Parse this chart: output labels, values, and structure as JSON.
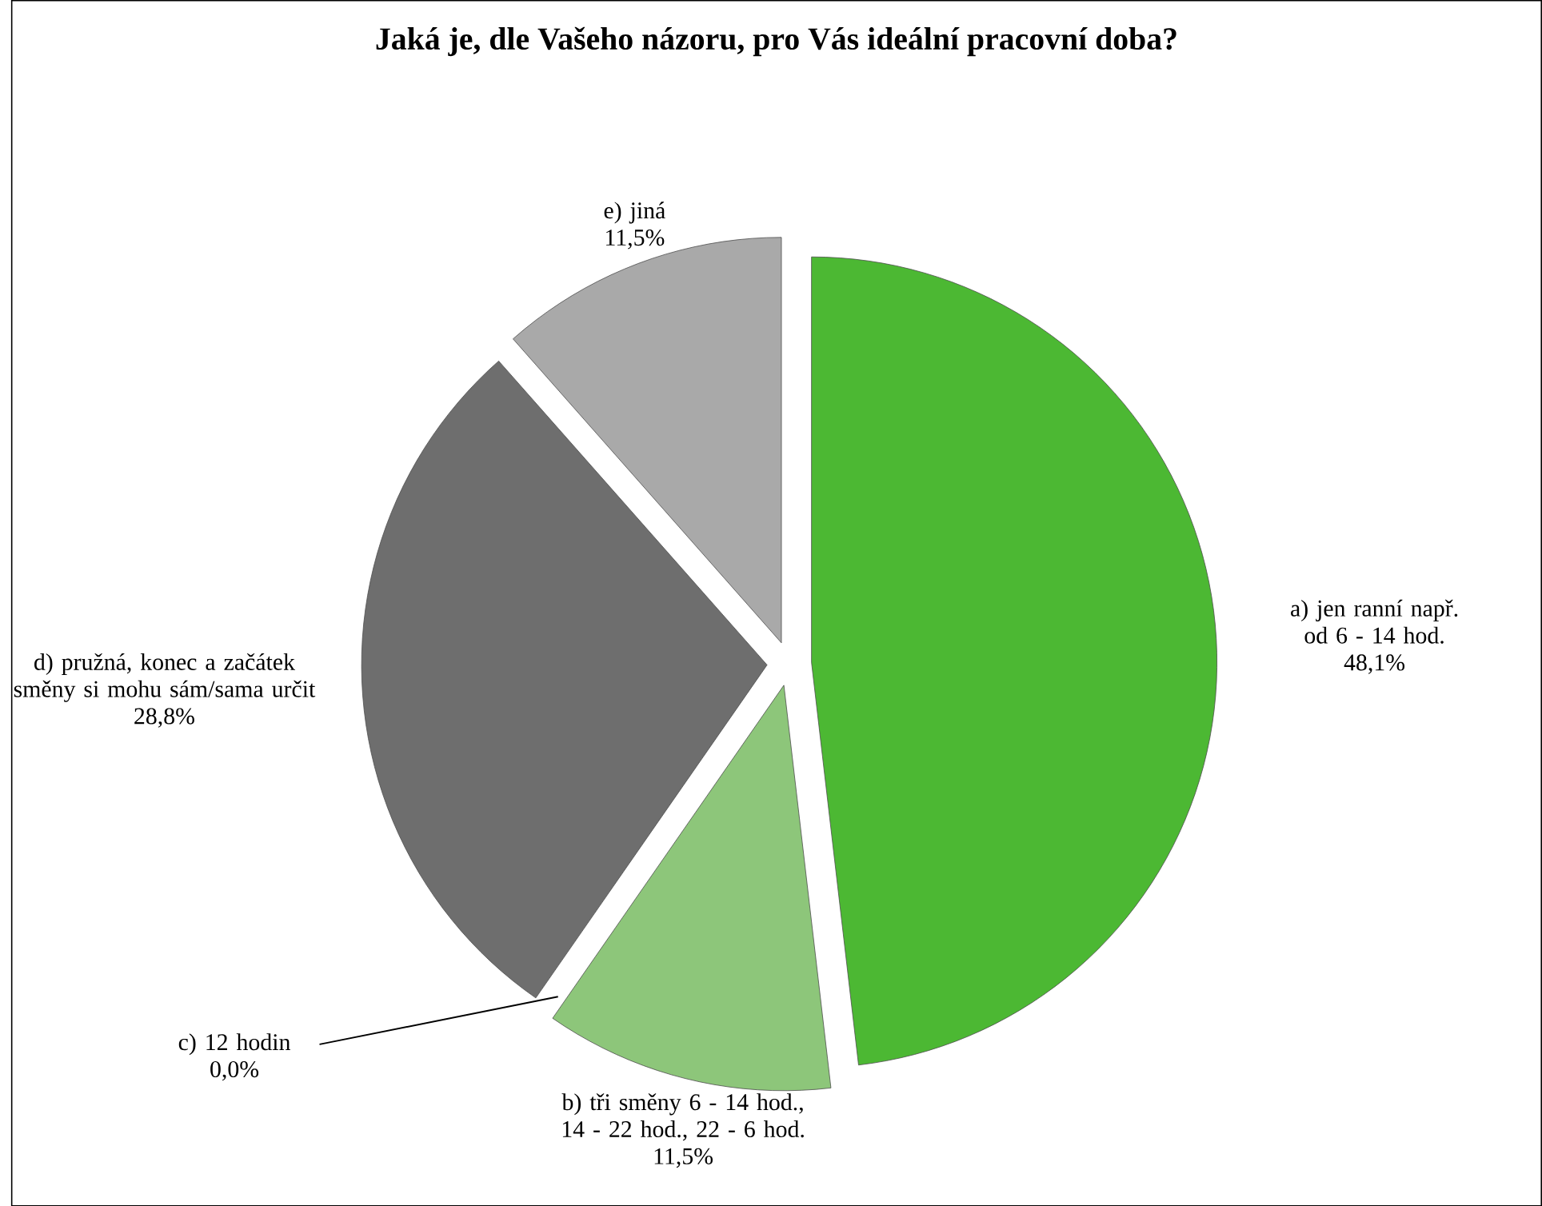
{
  "chart_data": {
    "type": "pie",
    "title": "Jaká je, dle Vašeho názoru, pro Vás ideální pracovní doba?",
    "categories": [
      "a) jen ranní např. od 6 - 14 hod.",
      "b) tři směny 6 - 14 hod., 14 - 22 hod., 22 - 6 hod.",
      "c) 12 hodin",
      "d) pružná, konec a začátek směny si mohu sám/sama určit",
      "e) jiná"
    ],
    "values": [
      48.1,
      11.5,
      0.0,
      28.8,
      11.5
    ],
    "value_labels": [
      "48,1%",
      "11,5%",
      "0,0%",
      "28,8%",
      "11,5%"
    ],
    "colors": [
      "#4cb833",
      "#8dc67a",
      "#b0d8a0",
      "#6e6e6e",
      "#a9a9a9"
    ]
  }
}
